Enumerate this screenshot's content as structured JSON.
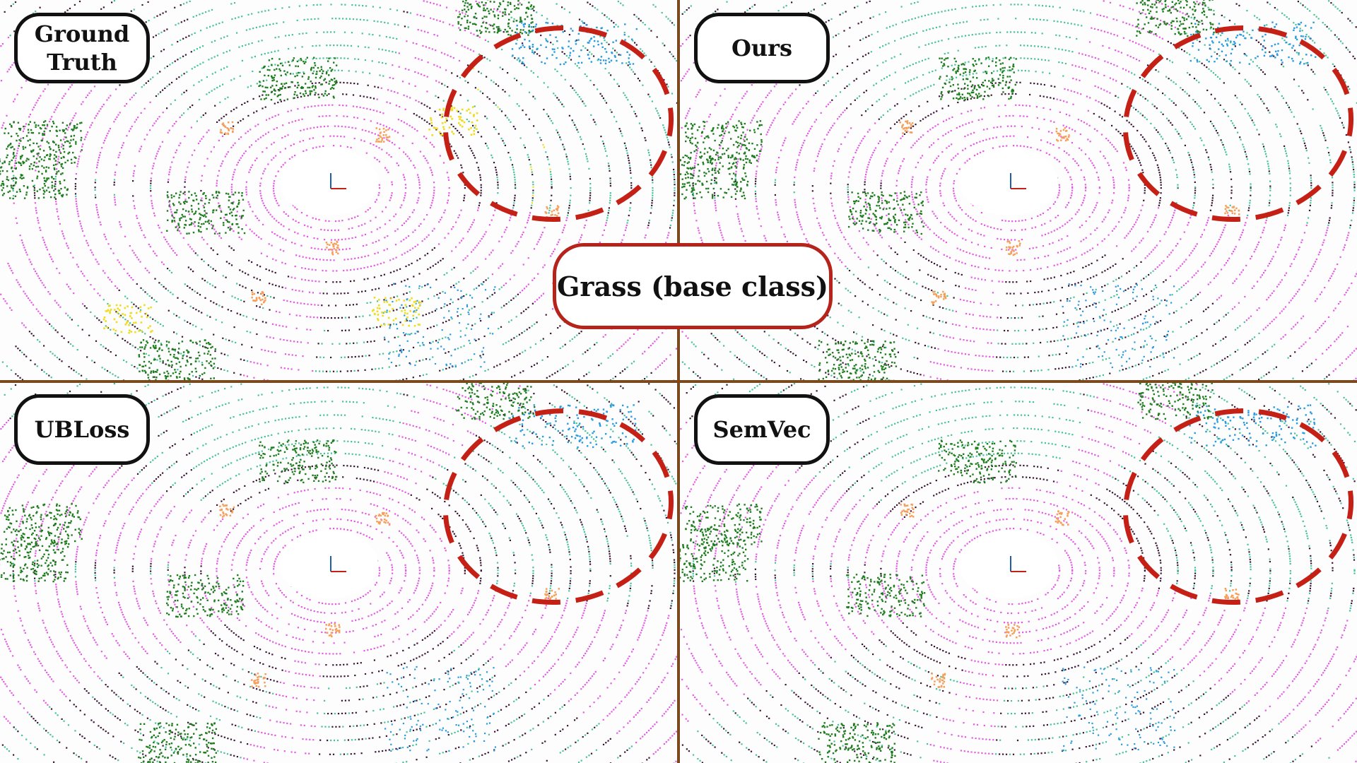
{
  "panels": [
    {
      "id": "ground-truth",
      "label": "Ground\nTruth",
      "highlight": "yellow"
    },
    {
      "id": "ours",
      "label": "Ours",
      "highlight": "blue"
    },
    {
      "id": "ubloss",
      "label": "UBLoss",
      "highlight": "blue"
    },
    {
      "id": "semvec",
      "label": "SemVec",
      "highlight": "blue"
    }
  ],
  "center_label": "Grass (base class)",
  "colors": {
    "road": "#e35ce3",
    "sidewalk": "#3b1535",
    "terrain": "#49c29b",
    "vegetation": "#1f7d1f",
    "vehicle": "#2a9be0",
    "person": "#f5a05a",
    "highlight_circle": "#c42015",
    "grass_gt": "#f0dc20",
    "divider": "#7a4a1e"
  }
}
